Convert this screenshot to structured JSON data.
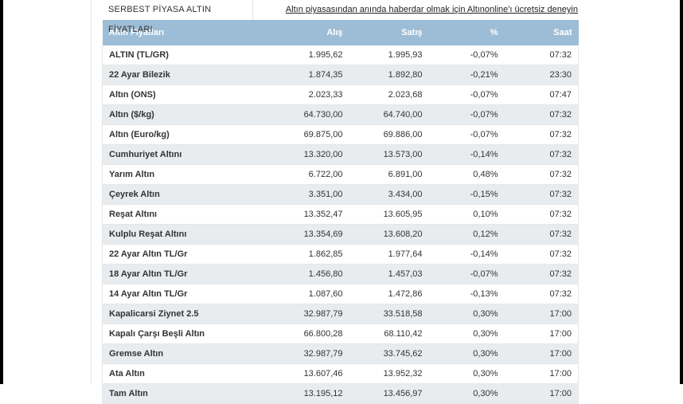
{
  "header": {
    "title": "SERBEST PİYASA ALTIN FİYATLARI",
    "promo_link": "Altın piyasasından anında haberdar olmak için Altınonline'ı ücretsiz deneyin"
  },
  "table": {
    "columns": [
      "Altın Fiyatları",
      "Alış",
      "Satış",
      "%",
      "Saat"
    ],
    "rows": [
      {
        "name": "ALTIN (TL/GR)",
        "alis": "1.995,62",
        "satis": "1.995,93",
        "pct": "-0,07%",
        "saat": "07:32"
      },
      {
        "name": "22 Ayar Bilezik",
        "alis": "1.874,35",
        "satis": "1.892,80",
        "pct": "-0,21%",
        "saat": "23:30"
      },
      {
        "name": "Altın (ONS)",
        "alis": "2.023,33",
        "satis": "2.023,68",
        "pct": "-0,07%",
        "saat": "07:47"
      },
      {
        "name": "Altın ($/kg)",
        "alis": "64.730,00",
        "satis": "64.740,00",
        "pct": "-0,07%",
        "saat": "07:32"
      },
      {
        "name": "Altın (Euro/kg)",
        "alis": "69.875,00",
        "satis": "69.886,00",
        "pct": "-0,07%",
        "saat": "07:32"
      },
      {
        "name": "Cumhuriyet Altını",
        "alis": "13.320,00",
        "satis": "13.573,00",
        "pct": "-0,14%",
        "saat": "07:32"
      },
      {
        "name": "Yarım Altın",
        "alis": "6.722,00",
        "satis": "6.891,00",
        "pct": "0,48%",
        "saat": "07:32"
      },
      {
        "name": "Çeyrek Altın",
        "alis": "3.351,00",
        "satis": "3.434,00",
        "pct": "-0,15%",
        "saat": "07:32"
      },
      {
        "name": "Reşat Altını",
        "alis": "13.352,47",
        "satis": "13.605,95",
        "pct": "0,10%",
        "saat": "07:32"
      },
      {
        "name": "Kulplu Reşat Altını",
        "alis": "13.354,69",
        "satis": "13.608,20",
        "pct": "0,12%",
        "saat": "07:32"
      },
      {
        "name": "22 Ayar Altın TL/Gr",
        "alis": "1.862,85",
        "satis": "1.977,64",
        "pct": "-0,14%",
        "saat": "07:32"
      },
      {
        "name": "18 Ayar Altın TL/Gr",
        "alis": "1.456,80",
        "satis": "1.457,03",
        "pct": "-0,07%",
        "saat": "07:32"
      },
      {
        "name": "14 Ayar Altın TL/Gr",
        "alis": "1.087,60",
        "satis": "1.472,86",
        "pct": "-0,13%",
        "saat": "07:32"
      },
      {
        "name": "Kapalicarsi Ziynet 2.5",
        "alis": "32.987,79",
        "satis": "33.518,58",
        "pct": "0,30%",
        "saat": "17:00"
      },
      {
        "name": "Kapalı Çarşı Beşli Altın",
        "alis": "66.800,28",
        "satis": "68.110,42",
        "pct": "0,30%",
        "saat": "17:00"
      },
      {
        "name": "Gremse Altın",
        "alis": "32.987,79",
        "satis": "33.745,62",
        "pct": "0,30%",
        "saat": "17:00"
      },
      {
        "name": "Ata Altın",
        "alis": "13.607,46",
        "satis": "13.952,32",
        "pct": "0,30%",
        "saat": "17:00"
      },
      {
        "name": "Tam Altın",
        "alis": "13.195,12",
        "satis": "13.456,97",
        "pct": "0,30%",
        "saat": "17:00"
      }
    ]
  },
  "colors": {
    "header_bg": "#9dbdd6",
    "row_alt_bg": "#e9ecef"
  }
}
